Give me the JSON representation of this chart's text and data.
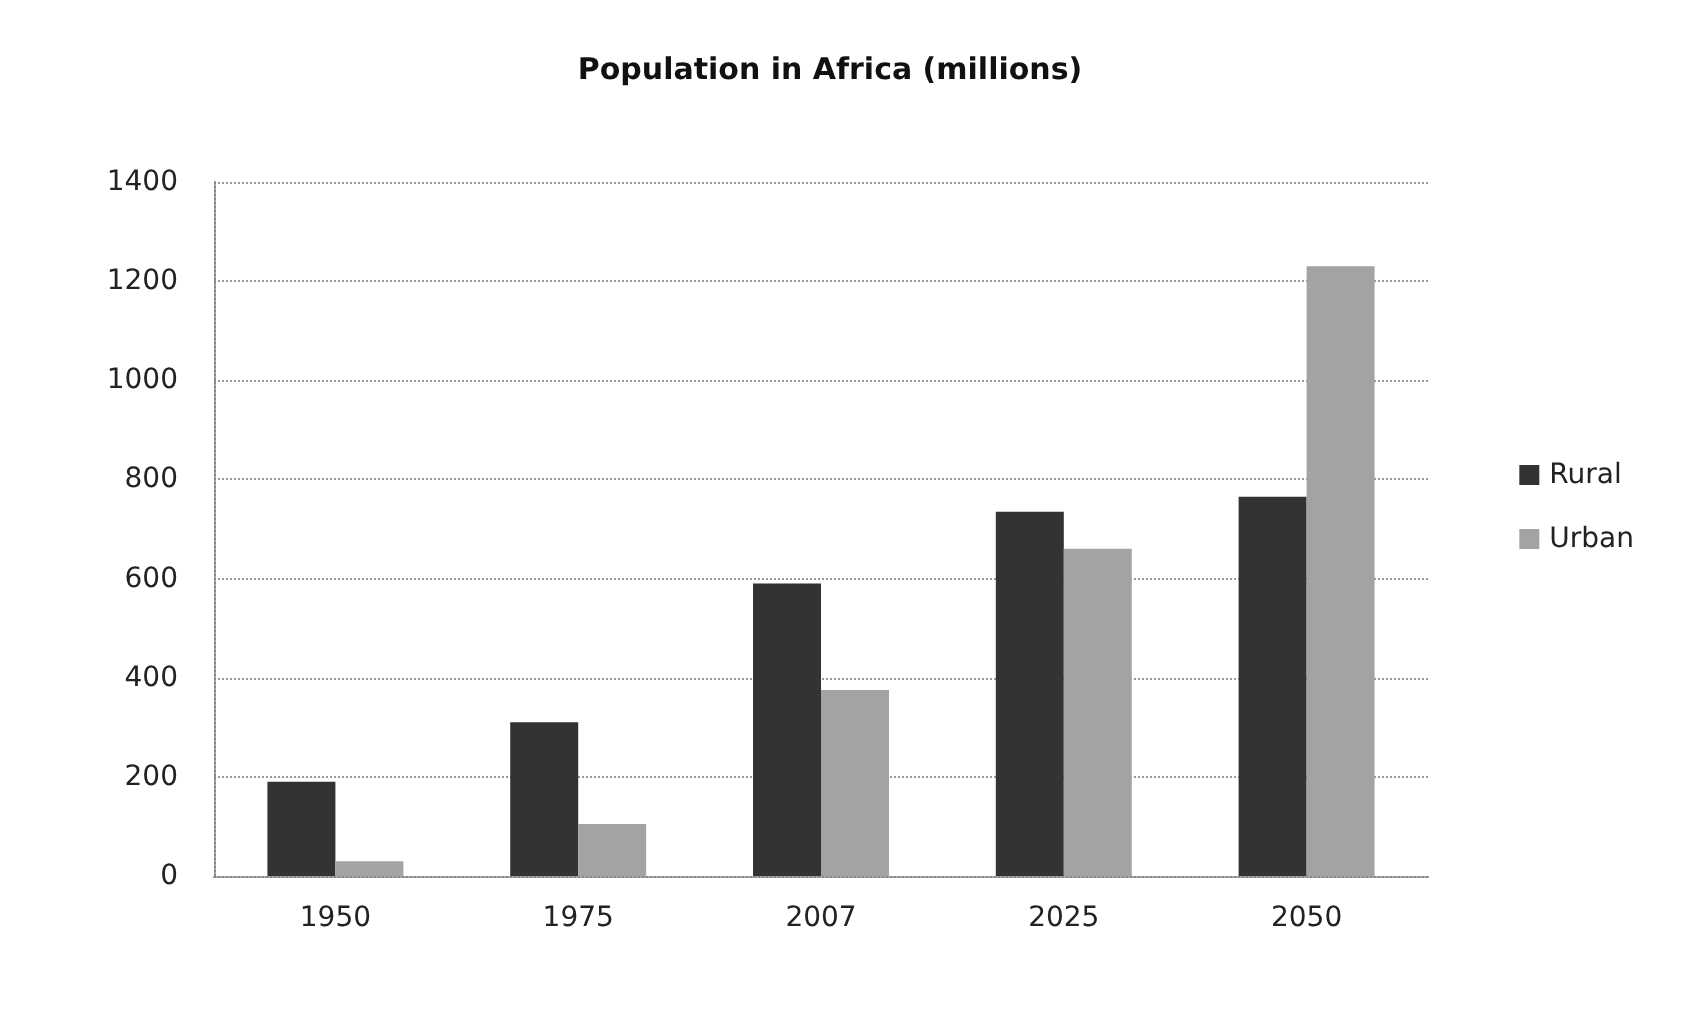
{
  "chart_data": {
    "type": "bar",
    "title": "Population in Africa (millions)",
    "categories": [
      "1950",
      "1975",
      "2007",
      "2025",
      "2050"
    ],
    "series": [
      {
        "name": "Rural",
        "color": "#333333",
        "values": [
          190,
          310,
          590,
          735,
          765
        ]
      },
      {
        "name": "Urban",
        "color": "#a3a3a3",
        "values": [
          30,
          105,
          375,
          660,
          1230
        ]
      }
    ],
    "ylim": [
      0,
      1400
    ],
    "yticks": [
      0,
      200,
      400,
      600,
      800,
      1000,
      1200,
      1400
    ],
    "grid": "y",
    "legend": "right"
  }
}
